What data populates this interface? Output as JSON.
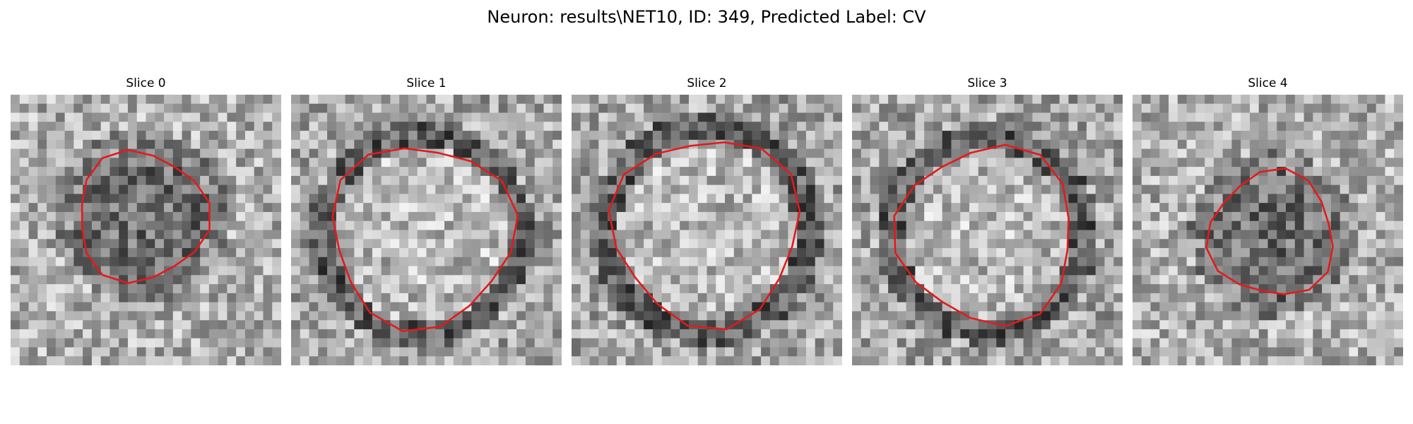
{
  "figure": {
    "title": "Neuron: results\\NET10, ID: 349, Predicted Label: CV",
    "outline_color": "#e31a1c",
    "panels": [
      {
        "title": "Slice 0",
        "cell_tone": "dark",
        "ring_tone": "none"
      },
      {
        "title": "Slice 1",
        "cell_tone": "light",
        "ring_tone": "dark"
      },
      {
        "title": "Slice 2",
        "cell_tone": "light",
        "ring_tone": "dark"
      },
      {
        "title": "Slice 3",
        "cell_tone": "light",
        "ring_tone": "dark"
      },
      {
        "title": "Slice 4",
        "cell_tone": "dark",
        "ring_tone": "none"
      }
    ]
  }
}
